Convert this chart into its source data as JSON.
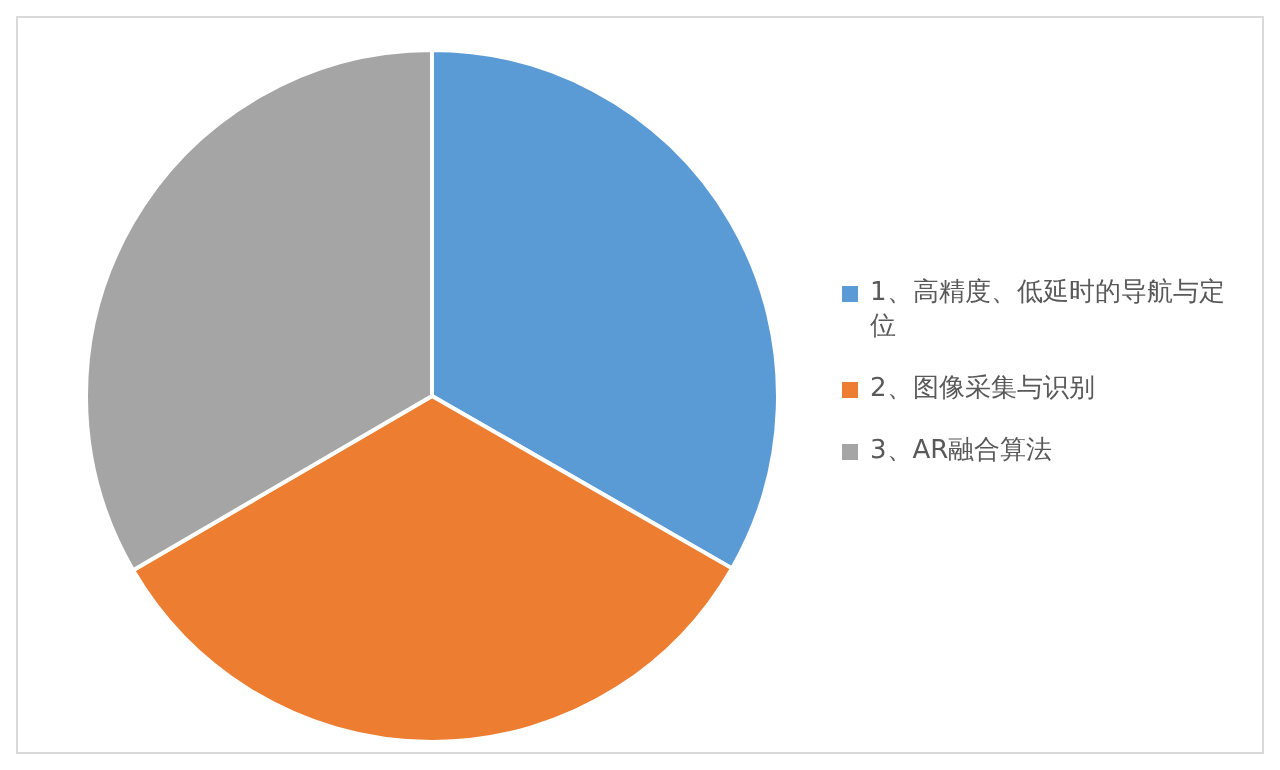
{
  "chart_data": {
    "type": "pie",
    "categories": [
      "1、高精度、低延时的导航与定位",
      "2、图像采集与识别",
      "3、AR融合算法"
    ],
    "values": [
      33.3,
      33.3,
      33.4
    ],
    "colors": [
      "#5b9bd5",
      "#ed7d31",
      "#a5a5a5"
    ],
    "legend": "right"
  }
}
